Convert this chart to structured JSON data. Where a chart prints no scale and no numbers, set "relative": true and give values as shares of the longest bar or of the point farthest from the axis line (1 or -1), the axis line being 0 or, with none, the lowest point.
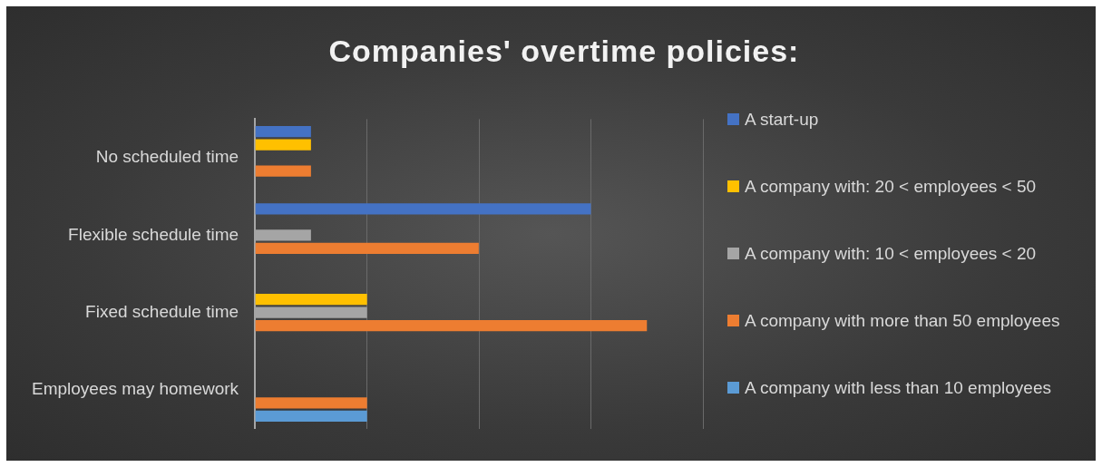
{
  "chart_data": {
    "type": "bar",
    "orientation": "horizontal",
    "relative": true,
    "title": "Companies' overtime policies:",
    "categories": [
      "No scheduled time",
      "Flexible schedule time",
      "Fixed schedule time",
      "Employees may homework"
    ],
    "series": [
      {
        "name": "A start-up",
        "color": "#4472c4",
        "values": [
          0.143,
          0.857,
          null,
          null
        ]
      },
      {
        "name": "A company with: 20 < employees < 50",
        "color": "#ffc000",
        "values": [
          0.143,
          null,
          0.286,
          null
        ]
      },
      {
        "name": "A company with: 10 < employees < 20",
        "color": "#a5a5a5",
        "values": [
          null,
          0.143,
          0.286,
          null
        ]
      },
      {
        "name": "A company with more than 50 employees",
        "color": "#ed7d31",
        "values": [
          0.143,
          0.571,
          1,
          0.286
        ]
      },
      {
        "name": "A company with less than 10 employees",
        "color": "#5b9bd5",
        "values": [
          null,
          null,
          null,
          0.286
        ]
      }
    ],
    "grid": "x",
    "legend": "right"
  }
}
